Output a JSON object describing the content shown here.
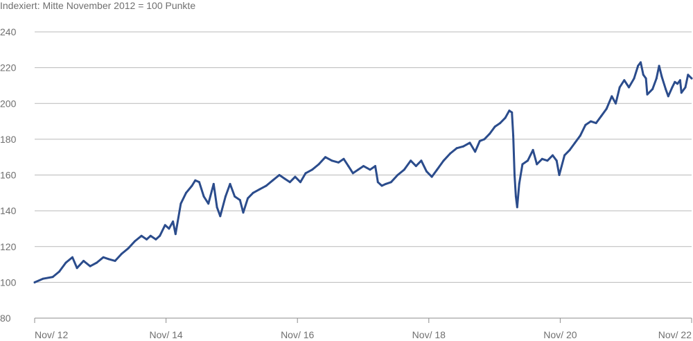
{
  "chart_data": {
    "type": "line",
    "title": "",
    "subtitle": "Indexiert: Mitte November 2012 = 100 Punkte",
    "xlabel": "",
    "ylabel": "",
    "ylim": [
      80,
      240
    ],
    "y_ticks": [
      80,
      100,
      120,
      140,
      160,
      180,
      200,
      220,
      240
    ],
    "x_ticks": [
      {
        "label": "Nov/ 12",
        "x": 2012.875
      },
      {
        "label": "Nov/ 14",
        "x": 2014.875
      },
      {
        "label": "Nov/ 16",
        "x": 2016.875
      },
      {
        "label": "Nov/ 18",
        "x": 2018.875
      },
      {
        "label": "Nov/ 20",
        "x": 2020.875
      },
      {
        "label": "Nov/ 22",
        "x": 2022.875
      }
    ],
    "xlim": [
      2012.875,
      2022.875
    ],
    "grid": true,
    "line_color": "#2b4c8c",
    "series": [
      {
        "name": "",
        "points": [
          [
            2012.875,
            100
          ],
          [
            2013.0,
            102
          ],
          [
            2013.15,
            103
          ],
          [
            2013.25,
            106
          ],
          [
            2013.35,
            111
          ],
          [
            2013.45,
            114
          ],
          [
            2013.52,
            108
          ],
          [
            2013.62,
            112
          ],
          [
            2013.72,
            109
          ],
          [
            2013.82,
            111
          ],
          [
            2013.92,
            114
          ],
          [
            2014.0,
            113
          ],
          [
            2014.1,
            112
          ],
          [
            2014.2,
            116
          ],
          [
            2014.3,
            119
          ],
          [
            2014.4,
            123
          ],
          [
            2014.5,
            126
          ],
          [
            2014.58,
            124
          ],
          [
            2014.64,
            126
          ],
          [
            2014.72,
            124
          ],
          [
            2014.78,
            126
          ],
          [
            2014.86,
            132
          ],
          [
            2014.92,
            130
          ],
          [
            2014.98,
            134
          ],
          [
            2015.02,
            127
          ],
          [
            2015.1,
            144
          ],
          [
            2015.18,
            150
          ],
          [
            2015.27,
            154
          ],
          [
            2015.32,
            157
          ],
          [
            2015.38,
            156
          ],
          [
            2015.45,
            148
          ],
          [
            2015.52,
            144
          ],
          [
            2015.6,
            155
          ],
          [
            2015.65,
            142
          ],
          [
            2015.7,
            137
          ],
          [
            2015.78,
            148
          ],
          [
            2015.85,
            155
          ],
          [
            2015.92,
            148
          ],
          [
            2016.0,
            146
          ],
          [
            2016.05,
            139
          ],
          [
            2016.12,
            147
          ],
          [
            2016.2,
            150
          ],
          [
            2016.3,
            152
          ],
          [
            2016.4,
            154
          ],
          [
            2016.5,
            157
          ],
          [
            2016.6,
            160
          ],
          [
            2016.68,
            158
          ],
          [
            2016.76,
            156
          ],
          [
            2016.84,
            159
          ],
          [
            2016.92,
            156
          ],
          [
            2017.0,
            161
          ],
          [
            2017.1,
            163
          ],
          [
            2017.2,
            166
          ],
          [
            2017.3,
            170
          ],
          [
            2017.4,
            168
          ],
          [
            2017.5,
            167
          ],
          [
            2017.58,
            169
          ],
          [
            2017.65,
            165
          ],
          [
            2017.72,
            161
          ],
          [
            2017.8,
            163
          ],
          [
            2017.88,
            165
          ],
          [
            2017.98,
            163
          ],
          [
            2018.06,
            165
          ],
          [
            2018.1,
            156
          ],
          [
            2018.16,
            154
          ],
          [
            2018.22,
            155
          ],
          [
            2018.3,
            156
          ],
          [
            2018.4,
            160
          ],
          [
            2018.5,
            163
          ],
          [
            2018.6,
            168
          ],
          [
            2018.68,
            165
          ],
          [
            2018.76,
            168
          ],
          [
            2018.84,
            162
          ],
          [
            2018.92,
            159
          ],
          [
            2019.0,
            163
          ],
          [
            2019.1,
            168
          ],
          [
            2019.2,
            172
          ],
          [
            2019.3,
            175
          ],
          [
            2019.4,
            176
          ],
          [
            2019.5,
            178
          ],
          [
            2019.58,
            173
          ],
          [
            2019.65,
            179
          ],
          [
            2019.72,
            180
          ],
          [
            2019.8,
            183
          ],
          [
            2019.88,
            187
          ],
          [
            2019.96,
            189
          ],
          [
            2020.04,
            192
          ],
          [
            2020.1,
            196
          ],
          [
            2020.14,
            195
          ],
          [
            2020.16,
            182
          ],
          [
            2020.18,
            160
          ],
          [
            2020.2,
            148
          ],
          [
            2020.22,
            142
          ],
          [
            2020.25,
            155
          ],
          [
            2020.3,
            166
          ],
          [
            2020.38,
            168
          ],
          [
            2020.46,
            174
          ],
          [
            2020.52,
            166
          ],
          [
            2020.6,
            169
          ],
          [
            2020.68,
            168
          ],
          [
            2020.76,
            171
          ],
          [
            2020.82,
            168
          ],
          [
            2020.86,
            160
          ],
          [
            2020.94,
            171
          ],
          [
            2021.02,
            174
          ],
          [
            2021.1,
            178
          ],
          [
            2021.18,
            182
          ],
          [
            2021.26,
            188
          ],
          [
            2021.34,
            190
          ],
          [
            2021.42,
            189
          ],
          [
            2021.5,
            193
          ],
          [
            2021.58,
            197
          ],
          [
            2021.66,
            204
          ],
          [
            2021.72,
            200
          ],
          [
            2021.78,
            209
          ],
          [
            2021.85,
            213
          ],
          [
            2021.92,
            209
          ],
          [
            2022.0,
            214
          ],
          [
            2022.06,
            221
          ],
          [
            2022.1,
            223
          ],
          [
            2022.14,
            216
          ],
          [
            2022.18,
            214
          ],
          [
            2022.2,
            205
          ],
          [
            2022.28,
            208
          ],
          [
            2022.34,
            214
          ],
          [
            2022.38,
            221
          ],
          [
            2022.42,
            215
          ],
          [
            2022.48,
            208
          ],
          [
            2022.52,
            204
          ],
          [
            2022.58,
            209
          ],
          [
            2022.62,
            212
          ],
          [
            2022.66,
            211
          ],
          [
            2022.7,
            213
          ],
          [
            2022.72,
            206
          ],
          [
            2022.78,
            209
          ],
          [
            2022.82,
            216
          ],
          [
            2022.875,
            214
          ]
        ]
      }
    ]
  }
}
